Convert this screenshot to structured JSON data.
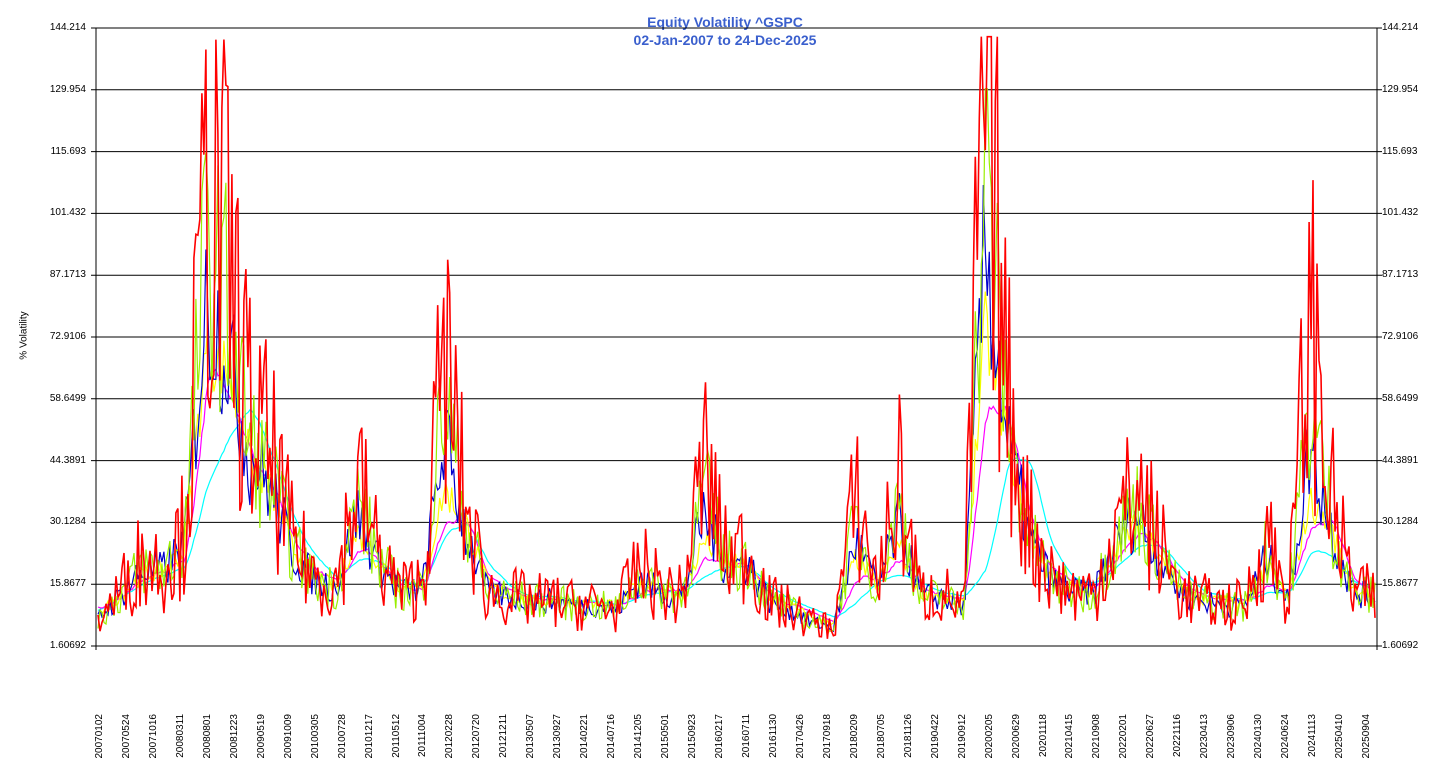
{
  "title_line1": "Equity Volatility ^GSPC",
  "title_line2": "02-Jan-2007 to 24-Dec-2025",
  "colors": {
    "title": "#3a5fcd",
    "gridline": "#000000",
    "series_daily": "#ff0000",
    "series_lime": "#99ee00",
    "series_blue": "#0000cc",
    "series_yellow": "#ffff00",
    "series_magenta": "#ff00ff",
    "series_cyan": "#00ffff"
  },
  "chart_data": {
    "type": "line",
    "title": "Equity Volatility ^GSPC",
    "subtitle": "02-Jan-2007 to 24-Dec-2025",
    "xlabel": "",
    "ylabel": "% Volatility",
    "ylim": [
      1.60692,
      144.214
    ],
    "grid": true,
    "legend": "none",
    "y_ticks": [
      "144.214",
      "129.954",
      "115.693",
      "101.432",
      "87.1713",
      "72.9106",
      "58.6499",
      "44.3891",
      "30.1284",
      "15.8677",
      "1.60692"
    ],
    "x_tick_labels": [
      "20070102",
      "20070524",
      "20071016",
      "20080311",
      "20080801",
      "20081223",
      "20090519",
      "20091009",
      "20100305",
      "20100728",
      "20101217",
      "20110512",
      "20111004",
      "20120228",
      "20120720",
      "20121211",
      "20130507",
      "20130927",
      "20140221",
      "20140716",
      "20141205",
      "20150501",
      "20150923",
      "20160217",
      "20160711",
      "20161130",
      "20170426",
      "20170918",
      "20180209",
      "20180705",
      "20181126",
      "20190422",
      "20190912",
      "20200205",
      "20200629",
      "20201118",
      "20210415",
      "20210908",
      "20220201",
      "20220627",
      "20221116",
      "20230413",
      "20230906",
      "20240130",
      "20240624",
      "20241113",
      "20250410",
      "20250904"
    ],
    "x": [
      "2007-01",
      "2007-06",
      "2007-10",
      "2008-03",
      "2008-08",
      "2008-10",
      "2008-11",
      "2008-12",
      "2009-03",
      "2009-05",
      "2009-10",
      "2010-03",
      "2010-05",
      "2010-07",
      "2010-12",
      "2011-05",
      "2011-08",
      "2011-10",
      "2012-02",
      "2012-07",
      "2012-12",
      "2013-05",
      "2013-09",
      "2014-02",
      "2014-07",
      "2014-10",
      "2014-12",
      "2015-05",
      "2015-08",
      "2015-09",
      "2016-02",
      "2016-07",
      "2016-11",
      "2017-04",
      "2017-09",
      "2018-02",
      "2018-07",
      "2018-12",
      "2019-04",
      "2019-09",
      "2020-02",
      "2020-03",
      "2020-04",
      "2020-06",
      "2020-11",
      "2021-04",
      "2021-09",
      "2022-02",
      "2022-06",
      "2022-11",
      "2023-04",
      "2023-09",
      "2024-01",
      "2024-06",
      "2024-08",
      "2024-11",
      "2025-04",
      "2025-05",
      "2025-09",
      "2025-12"
    ],
    "series": [
      {
        "name": "Daily volatility",
        "color": "#ff0000",
        "values": [
          8,
          14,
          22,
          20,
          28,
          105,
          90,
          55,
          45,
          25,
          18,
          16,
          40,
          22,
          14,
          16,
          70,
          32,
          14,
          13,
          12,
          12,
          11,
          11,
          10,
          20,
          15,
          13,
          45,
          22,
          24,
          12,
          10,
          7,
          6,
          36,
          16,
          40,
          13,
          14,
          10,
          136,
          60,
          30,
          18,
          14,
          14,
          28,
          38,
          25,
          14,
          12,
          11,
          11,
          28,
          12,
          80,
          35,
          14,
          13
        ]
      },
      {
        "name": "Short window",
        "color": "#99ee00",
        "values": [
          8,
          13,
          20,
          19,
          26,
          95,
          80,
          48,
          40,
          24,
          17,
          15,
          35,
          21,
          14,
          15,
          60,
          30,
          14,
          13,
          12,
          12,
          11,
          11,
          10,
          18,
          15,
          13,
          38,
          21,
          22,
          12,
          10,
          7,
          6,
          30,
          15,
          35,
          13,
          13,
          10,
          110,
          55,
          28,
          17,
          14,
          14,
          26,
          34,
          24,
          14,
          12,
          11,
          11,
          24,
          12,
          58,
          30,
          14,
          13
        ]
      },
      {
        "name": "Medium window",
        "color": "#0000cc",
        "values": [
          8,
          13,
          19,
          19,
          25,
          80,
          70,
          45,
          38,
          23,
          17,
          15,
          32,
          20,
          14,
          15,
          50,
          28,
          14,
          13,
          12,
          12,
          11,
          11,
          10,
          17,
          14,
          13,
          32,
          20,
          21,
          12,
          10,
          7,
          6,
          26,
          15,
          30,
          13,
          13,
          10,
          95,
          50,
          27,
          17,
          14,
          14,
          25,
          32,
          23,
          14,
          12,
          11,
          11,
          22,
          12,
          48,
          28,
          14,
          13
        ]
      },
      {
        "name": "Long window",
        "color": "#ffff00",
        "values": [
          9,
          13,
          18,
          19,
          24,
          70,
          65,
          45,
          38,
          24,
          18,
          15,
          28,
          21,
          15,
          15,
          38,
          30,
          16,
          13,
          12,
          12,
          12,
          11,
          11,
          16,
          15,
          13,
          26,
          21,
          20,
          13,
          11,
          8,
          7,
          22,
          16,
          25,
          14,
          13,
          11,
          75,
          50,
          28,
          18,
          15,
          14,
          24,
          30,
          24,
          15,
          12,
          12,
          11,
          20,
          13,
          35,
          28,
          15,
          13
        ]
      },
      {
        "name": "Longer window",
        "color": "#ff00ff",
        "values": [
          10,
          13,
          17,
          19,
          22,
          65,
          62,
          45,
          38,
          25,
          19,
          16,
          25,
          21,
          15,
          15,
          32,
          30,
          17,
          14,
          13,
          12,
          12,
          11,
          11,
          14,
          15,
          14,
          22,
          21,
          20,
          13,
          11,
          9,
          7,
          18,
          17,
          22,
          15,
          13,
          12,
          60,
          55,
          30,
          19,
          16,
          15,
          22,
          28,
          25,
          16,
          13,
          12,
          12,
          16,
          14,
          30,
          30,
          16,
          14
        ]
      },
      {
        "name": "Longest window",
        "color": "#00ffff",
        "values": [
          10,
          13,
          16,
          18,
          20,
          40,
          50,
          57,
          45,
          30,
          22,
          17,
          22,
          21,
          16,
          16,
          28,
          30,
          20,
          15,
          13,
          13,
          12,
          12,
          11,
          13,
          14,
          14,
          18,
          20,
          20,
          15,
          12,
          10,
          8,
          12,
          17,
          18,
          16,
          14,
          13,
          20,
          45,
          44,
          24,
          17,
          16,
          20,
          25,
          25,
          19,
          14,
          13,
          12,
          14,
          14,
          24,
          22,
          16,
          15
        ]
      }
    ]
  }
}
